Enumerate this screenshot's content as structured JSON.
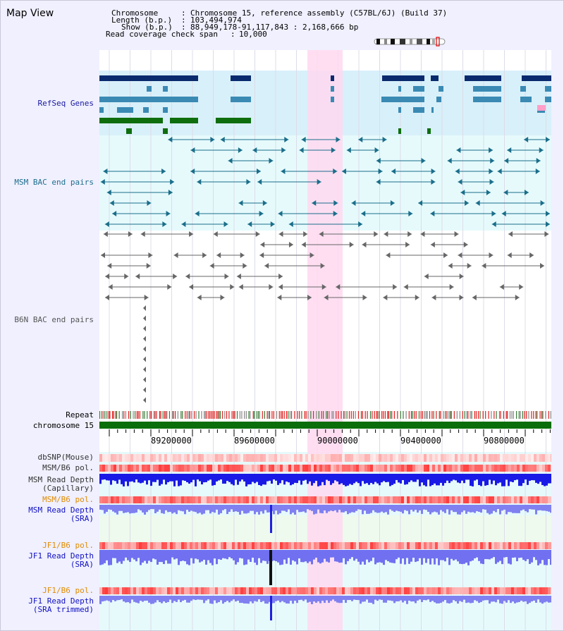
{
  "title": "Map View",
  "info": {
    "chromosome_key": "Chromosome",
    "chromosome_val": "Chromosome 15, reference assembly (C57BL/6J) (Build 37)",
    "length_key": "Length (b.p.)",
    "length_val": "103,494,974",
    "show_key": "Show (b.p.)",
    "show_val": "88,949,178-91,117,843 : 2,168,666 bp",
    "coverage_key": "Read coverage check span",
    "coverage_val": "10,000",
    "colon": ":"
  },
  "tracks": {
    "refseq": "RefSeq Genes",
    "msm_bac": "MSM BAC end pairs",
    "b6n_bac": "B6N BAC end pairs",
    "repeat": "Repeat",
    "chrom": "chromosome 15",
    "dbsnp": "dbSNP(Mouse)",
    "msmb6_1": "MSM/B6 pol.",
    "msm_depth_cap_1": "MSM Read Depth",
    "msm_depth_cap_2": "(Capillary)",
    "msmb6_2": "MSM/B6 pol.",
    "msm_depth_sra_1": "MSM Read Depth",
    "msm_depth_sra_2": "(SRA)",
    "jf1b6_1": "JF1/B6 pol.",
    "jf1_depth_sra_1": "JF1 Read Depth",
    "jf1_depth_sra_2": "(SRA)",
    "jf1b6_2": "JF1/B6 pol.",
    "jf1_depth_trim_1": "JF1 Read Depth",
    "jf1_depth_trim_2": "(SRA trimmed)"
  },
  "axis": {
    "ticks": [
      "89200000",
      "89600000",
      "90000000",
      "90400000",
      "90800000"
    ]
  },
  "colors": {
    "refseq_label": "#1a1aa0",
    "msm_label": "#1e6e8c",
    "b6n_label": "#555555",
    "msmpol_label": "#000000",
    "orange_label": "#e08c00",
    "blue_label": "#1010c0",
    "gene_dark": "#0a2a6e",
    "gene_mid": "#3a8ab4",
    "gene_green": "#0e6e0e",
    "bac_teal": "#1a6e8a",
    "bac_gray": "#666666",
    "highlight": "#ffd8f0",
    "chrom_green": "#0a6e0a"
  }
}
